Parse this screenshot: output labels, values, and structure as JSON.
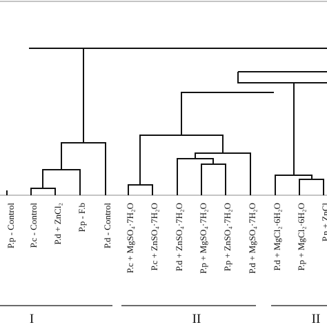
{
  "leaves": [
    {
      "id": "pp_control",
      "label": "P.p - Control"
    },
    {
      "id": "pc_control",
      "label": "P.c - Control"
    },
    {
      "id": "pd_zncl2",
      "label": "P.d + ZnCl₂"
    },
    {
      "id": "pp_fb",
      "label": "P.p - F.b"
    },
    {
      "id": "pd_control",
      "label": "P.d - Control"
    },
    {
      "id": "pc_mgso4",
      "label": "P.c + MgSO₄·7H₂O"
    },
    {
      "id": "pc_znso4",
      "label": "P.c + ZnSO₄·7H₂O"
    },
    {
      "id": "pd_znso4",
      "label": "P.d + ZnSO₄·7H₂O"
    },
    {
      "id": "pp_mgso4",
      "label": "P.p + MgSO₄·7H₂O"
    },
    {
      "id": "pp_znso4",
      "label": "P.p + ZnSO₄·7H₂O"
    },
    {
      "id": "pd_mgso4",
      "label": "P.d + MgSO₄·7H₂O"
    },
    {
      "id": "pd_mgcl2",
      "label": "P.d + MgCl₂·6H₂O"
    },
    {
      "id": "pp_mgcl2",
      "label": "P.p + MgCl₂·6H₂O"
    },
    {
      "id": "pn_zncl2",
      "label": "P.n + ZnCl"
    }
  ],
  "groups": [
    {
      "label": "I"
    },
    {
      "label": "II"
    },
    {
      "label": "II"
    }
  ]
}
